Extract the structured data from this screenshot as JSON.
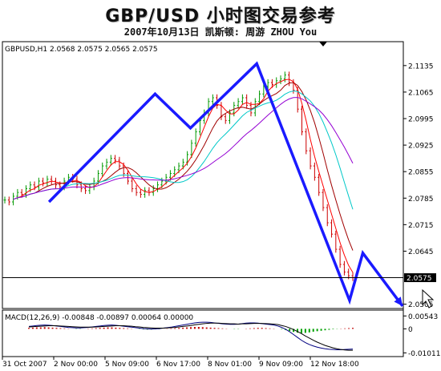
{
  "header": {
    "title": "GBP/USD 小时图交易参考",
    "subtitle": "2007年10月13日  凯斯顿: 周游 ZHOU You"
  },
  "chart_data": {
    "type": "line",
    "symbol_label": "GBPUSD,H1  2.0568 2.0575 2.0565 2.0575",
    "price_axis": {
      "ticks": [
        "2.1135",
        "2.1065",
        "2.0995",
        "2.0925",
        "2.0855",
        "2.0785",
        "2.0715",
        "2.0645",
        "2.0575",
        "2.0505"
      ],
      "ylim": [
        2.05,
        2.116
      ],
      "current_price": "2.0575"
    },
    "time_axis": {
      "ticks": [
        "31 Oct 2007",
        "2 Nov 00:00",
        "5 Nov 09:00",
        "6 Nov 17:00",
        "8 Nov 01:00",
        "9 Nov 09:00",
        "12 Nov 18:00"
      ]
    },
    "price_series": {
      "name": "",
      "close": [
        2.078,
        2.0775,
        2.079,
        2.08,
        2.0795,
        2.081,
        2.082,
        2.0815,
        2.083,
        2.0825,
        2.0835,
        2.083,
        2.082,
        2.0815,
        2.083,
        2.084,
        2.0835,
        2.082,
        2.081,
        2.0805,
        2.0815,
        2.083,
        2.085,
        2.087,
        2.088,
        2.089,
        2.0885,
        2.087,
        2.085,
        2.083,
        2.081,
        2.08,
        2.0795,
        2.0805,
        2.08,
        2.081,
        2.082,
        2.083,
        2.084,
        2.085,
        2.086,
        2.087,
        2.088,
        2.09,
        2.093,
        2.096,
        2.099,
        2.101,
        2.104,
        2.105,
        2.103,
        2.1,
        2.099,
        2.101,
        2.103,
        2.104,
        2.105,
        2.103,
        2.101,
        2.104,
        2.106,
        2.108,
        2.109,
        2.1085,
        2.1095,
        2.11,
        2.111,
        2.109,
        2.107,
        2.102,
        2.096,
        2.091,
        2.087,
        2.084,
        2.08,
        2.076,
        2.072,
        2.069,
        2.065,
        2.061,
        2.059,
        2.058,
        2.0575
      ]
    },
    "moving_averages": [
      {
        "name": "",
        "color": "#ff0000"
      },
      {
        "name": "",
        "color": "#a00000"
      },
      {
        "name": "",
        "color": "#00c8c8"
      },
      {
        "name": "",
        "color": "#9400d3"
      }
    ],
    "annotation_path": {
      "color": "#1a1aff",
      "points": [
        {
          "x": 10,
          "y": 2.0775
        },
        {
          "x": 34,
          "y": 2.106
        },
        {
          "x": 42,
          "y": 2.097
        },
        {
          "x": 57,
          "y": 2.114
        },
        {
          "x": 78,
          "y": 2.0515
        },
        {
          "x": 81,
          "y": 2.064
        },
        {
          "x": 90,
          "y": 2.05
        }
      ]
    },
    "macd": {
      "label": "MACD(12,26,9) -0.00848 -0.00897 0.00064 0.00000",
      "ticks": [
        "0.00543",
        "0",
        "-0.01011"
      ],
      "ylim": [
        -0.011,
        0.0062
      ],
      "histogram": [
        0.0004,
        0.0005,
        0.0006,
        0.0006,
        0.0007,
        0.0006,
        0.0005,
        0.0004,
        0.0003,
        0.0002,
        0.0001,
        0,
        -0.0001,
        -0.0001,
        0,
        0.0001,
        0.0002,
        0.0003,
        0.0004,
        0.0005,
        0.0006,
        0.0006,
        0.0005,
        0.0004,
        0.0003,
        0.0002,
        0.0001,
        0,
        -0.0001,
        -0.0002,
        -0.0003,
        -0.0003,
        -0.0002,
        -0.0001,
        0,
        0.0001,
        0.0002,
        0.0003,
        0.0004,
        0.0005,
        0.0006,
        0.0007,
        0.0008,
        0.0008,
        0.0007,
        0.0006,
        0.0005,
        0.0004,
        0.0003,
        0.0002,
        0.0001,
        0,
        -0.0001,
        -0.0001,
        0,
        0.0001,
        0.0002,
        0.0003,
        0.0004,
        0.0004,
        0.0003,
        0.0002,
        0.0001,
        0,
        -0.0002,
        -0.0005,
        -0.0009,
        -0.0013,
        -0.0016,
        -0.0018,
        -0.0017,
        -0.0015,
        -0.0012,
        -0.001,
        -0.0008,
        -0.0006,
        -0.0004,
        -0.0002,
        -0.0001,
        0.0001,
        0.0002,
        0.0003,
        0.0004
      ],
      "macd_line": [
        0.001,
        0.0012,
        0.0014,
        0.0015,
        0.0016,
        0.0015,
        0.0014,
        0.0012,
        0.001,
        0.0008,
        0.0006,
        0.0005,
        0.0004,
        0.0004,
        0.0005,
        0.0006,
        0.0008,
        0.001,
        0.0012,
        0.0014,
        0.0015,
        0.0016,
        0.0015,
        0.0013,
        0.0011,
        0.0009,
        0.0007,
        0.0005,
        0.0003,
        0.0001,
        0,
        -0.0001,
        0,
        0.0001,
        0.0003,
        0.0005,
        0.0007,
        0.001,
        0.0013,
        0.0016,
        0.0019,
        0.0022,
        0.0025,
        0.0027,
        0.0028,
        0.0028,
        0.0027,
        0.0025,
        0.0023,
        0.0021,
        0.002,
        0.0019,
        0.0019,
        0.002,
        0.0022,
        0.0024,
        0.0025,
        0.0025,
        0.0024,
        0.0022,
        0.002,
        0.0018,
        0.0016,
        0.0012,
        0.0006,
        -0.0002,
        -0.0012,
        -0.0024,
        -0.0036,
        -0.0048,
        -0.0058,
        -0.0066,
        -0.0072,
        -0.0077,
        -0.0081,
        -0.0084,
        -0.0086,
        -0.0087,
        -0.0088,
        -0.0088,
        -0.0087,
        -0.0086,
        -0.0085
      ],
      "signal_line": [
        0.0008,
        0.0009,
        0.001,
        0.0011,
        0.0012,
        0.0013,
        0.0013,
        0.0013,
        0.0012,
        0.0011,
        0.001,
        0.0009,
        0.0008,
        0.0007,
        0.0007,
        0.0007,
        0.0007,
        0.0008,
        0.0009,
        0.001,
        0.0011,
        0.0012,
        0.0013,
        0.0013,
        0.0013,
        0.0012,
        0.0011,
        0.0009,
        0.0008,
        0.0006,
        0.0005,
        0.0004,
        0.0003,
        0.0003,
        0.0003,
        0.0004,
        0.0005,
        0.0006,
        0.0008,
        0.001,
        0.0012,
        0.0014,
        0.0017,
        0.0019,
        0.0021,
        0.0023,
        0.0024,
        0.0024,
        0.0024,
        0.0023,
        0.0022,
        0.0021,
        0.0021,
        0.002,
        0.0021,
        0.0021,
        0.0022,
        0.0023,
        0.0023,
        0.0023,
        0.0022,
        0.0021,
        0.002,
        0.0018,
        0.0014,
        0.001,
        0.0004,
        -0.0003,
        -0.0011,
        -0.002,
        -0.003,
        -0.0039,
        -0.0048,
        -0.0056,
        -0.0063,
        -0.007,
        -0.0075,
        -0.008,
        -0.0084,
        -0.0087,
        -0.0089,
        -0.009,
        -0.009
      ],
      "colors": {
        "macd": "#000080",
        "signal": "#000000",
        "up": "#00a000",
        "down": "#c00000"
      }
    }
  }
}
